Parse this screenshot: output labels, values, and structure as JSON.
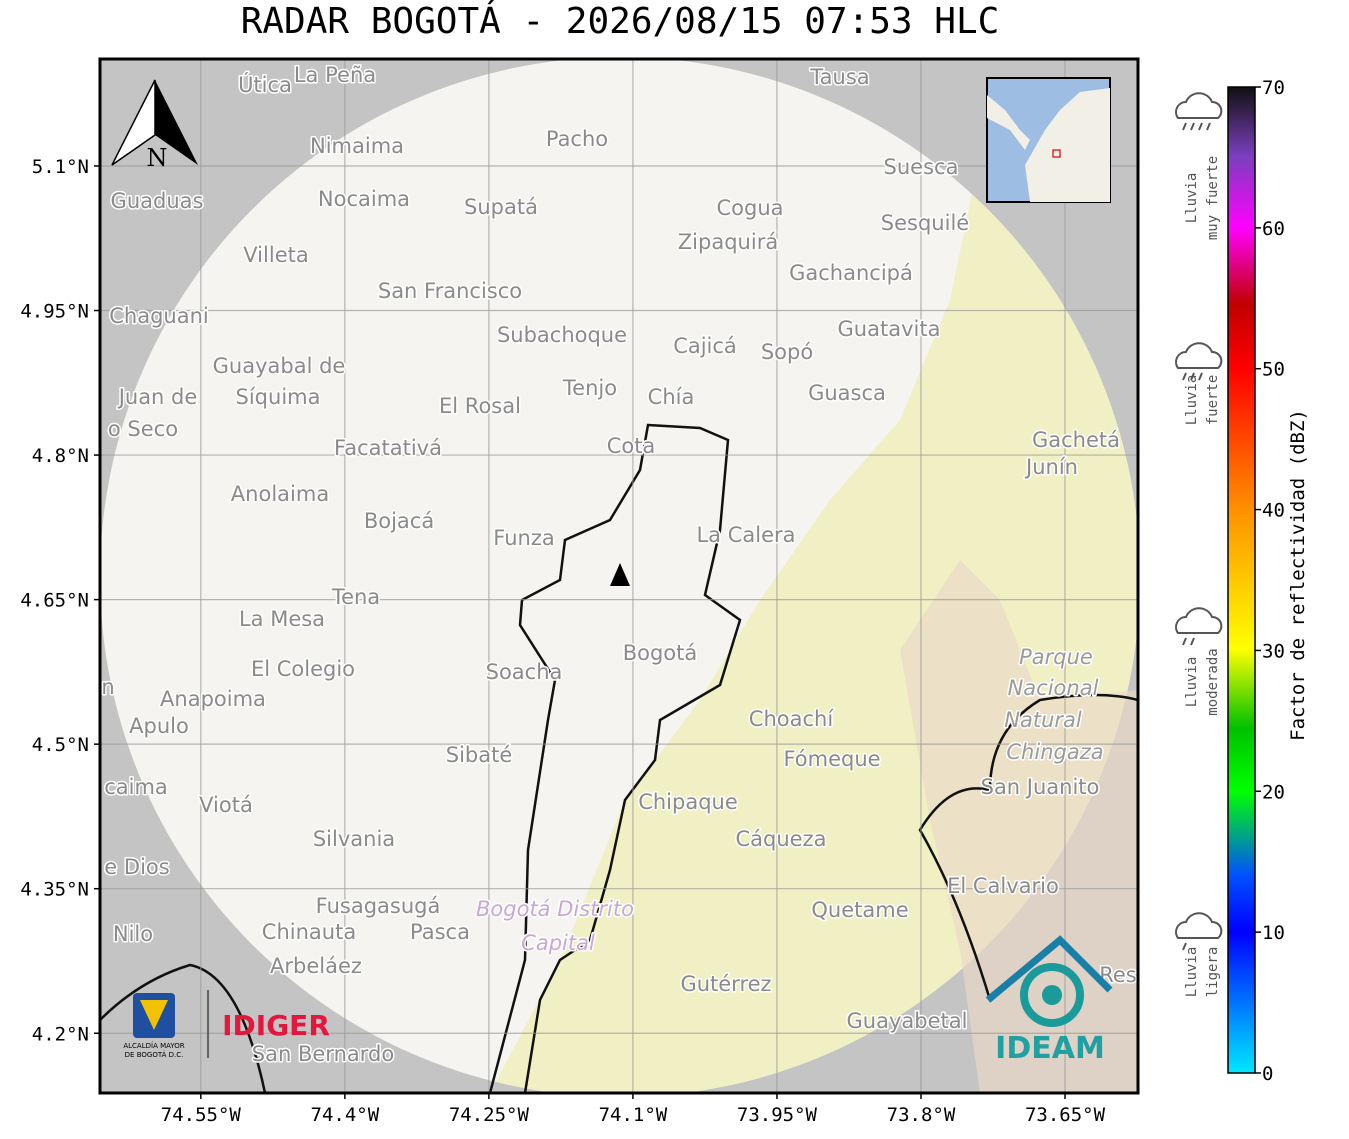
{
  "title": "RADAR BOGOTÁ - 2026/08/15 07:53 HLC",
  "map": {
    "north": "N",
    "xlim": [
      -74.655,
      -73.574
    ],
    "ylim": [
      4.138,
      5.211
    ],
    "lon_ticks": [
      {
        "value": -74.55,
        "label": "74.55°W"
      },
      {
        "value": -74.4,
        "label": "74.4°W"
      },
      {
        "value": -74.25,
        "label": "74.25°W"
      },
      {
        "value": -74.1,
        "label": "74.1°W"
      },
      {
        "value": -73.95,
        "label": "73.95°W"
      },
      {
        "value": -73.8,
        "label": "73.8°W"
      },
      {
        "value": -73.65,
        "label": "73.65°W"
      }
    ],
    "lat_ticks": [
      {
        "value": 5.1,
        "label": "5.1°N"
      },
      {
        "value": 4.95,
        "label": "4.95°N"
      },
      {
        "value": 4.8,
        "label": "4.8°N"
      },
      {
        "value": 4.65,
        "label": "4.65°N"
      },
      {
        "value": 4.5,
        "label": "4.5°N"
      },
      {
        "value": 4.35,
        "label": "4.35°N"
      },
      {
        "value": 4.2,
        "label": "4.2°N"
      }
    ],
    "places": [
      "Útica",
      "La Peña",
      "Tausa",
      "Pacho",
      "Nimaima",
      "Suesca",
      "Guaduas",
      "Nocaima",
      "Supatá",
      "Cogua",
      "Sesquilé",
      "Zipaquirá",
      "Villeta",
      "Gachancipá",
      "San Francisco",
      "Chaguani",
      "Guatavita",
      "Subachoque",
      "Cajicá",
      "Sopó",
      "Guayabal de",
      "Tenjo",
      "Guasca",
      "Juan de",
      "Síquima",
      "Chía",
      "El Rosal",
      "o Seco",
      "Gachetá",
      "Facatativá",
      "Cota",
      "Junín",
      "Anolaima",
      "Bojacá",
      "La Calera",
      "Funza",
      "Tena",
      "La Mesa",
      "Bogotá",
      "El Colegio",
      "Soacha",
      "n",
      "Anapoima",
      "Apulo",
      "Choachí",
      "Sibaté",
      "Fómeque",
      "San Juanito",
      "caima",
      "Viotá",
      "Chipaque",
      "Silvania",
      "Cáqueza",
      "e Dios",
      "El Calvario",
      "Fusagasugá",
      "Quetame",
      "Nilo",
      "Chinauta",
      "Pasca",
      "Arbeláez",
      "Gutérrez",
      "Res",
      "Guayabetal",
      "San Bernardo"
    ],
    "park_lines": [
      "Parque",
      "Nacional",
      "Natural",
      "Chingaza"
    ],
    "district_lines": [
      "Bogotá Distrito",
      "Capital"
    ]
  },
  "colorbar": {
    "label": "Factor de reflectividad (dBZ)",
    "vlim": [
      0,
      70
    ],
    "ticks": [
      0,
      10,
      20,
      30,
      40,
      50,
      60,
      70
    ]
  },
  "rain_levels": [
    {
      "lines": [
        "Lluvia",
        "muy fuerte"
      ]
    },
    {
      "lines": [
        "Lluvia",
        "fuerte"
      ]
    },
    {
      "lines": [
        "Lluvia",
        "moderada"
      ]
    },
    {
      "lines": [
        "Lluvia",
        "ligera"
      ]
    }
  ],
  "logos": {
    "alcaldia": [
      "ALCALDÍA MAYOR",
      "DE BOGOTÁ D.C."
    ],
    "idiger": "IDIGER",
    "ideam": "IDEAM"
  }
}
